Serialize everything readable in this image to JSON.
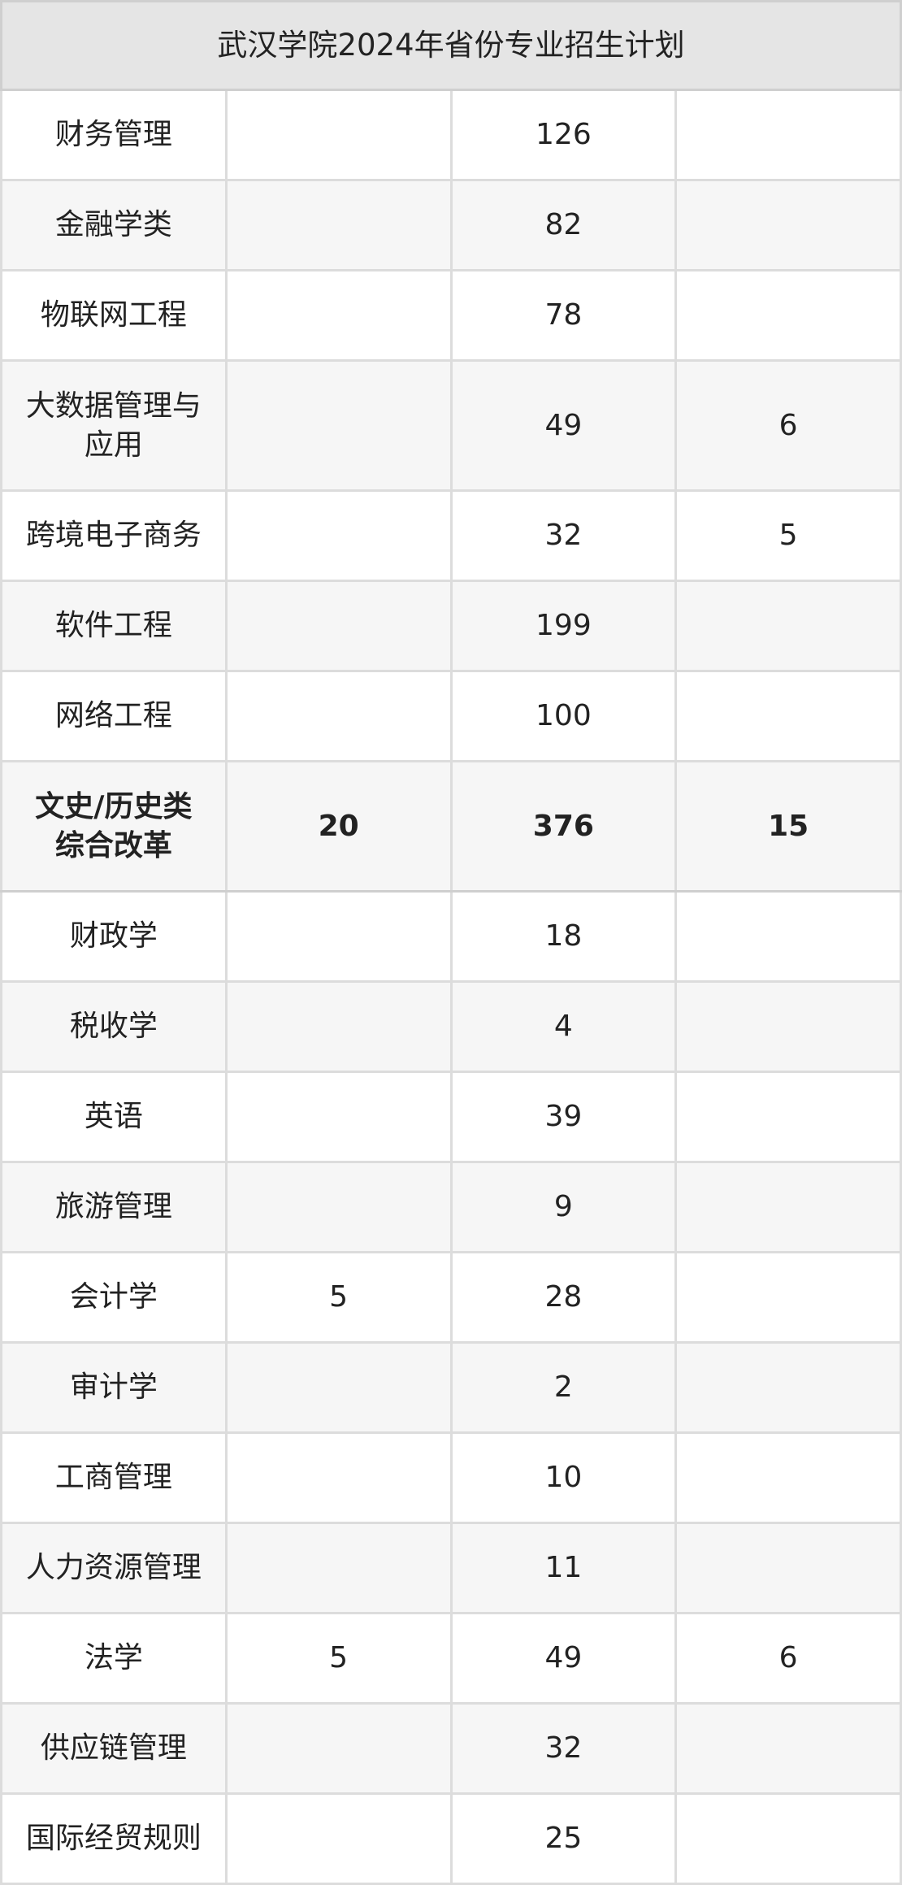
{
  "title": "武汉学院2024年省份专业招生计划",
  "rows": [
    {
      "name": "财务管理",
      "c1": "",
      "c2": "126",
      "c3": ""
    },
    {
      "name": "金融学类",
      "c1": "",
      "c2": "82",
      "c3": ""
    },
    {
      "name": "物联网工程",
      "c1": "",
      "c2": "78",
      "c3": ""
    },
    {
      "name": "大数据管理与\n应用",
      "c1": "",
      "c2": "49",
      "c3": "6"
    },
    {
      "name": "跨境电子商务",
      "c1": "",
      "c2": "32",
      "c3": "5"
    },
    {
      "name": "软件工程",
      "c1": "",
      "c2": "199",
      "c3": ""
    },
    {
      "name": "网络工程",
      "c1": "",
      "c2": "100",
      "c3": ""
    },
    {
      "name": "文史/历史类\n综合改革",
      "c1": "20",
      "c2": "376",
      "c3": "15",
      "bold": true
    },
    {
      "name": "财政学",
      "c1": "",
      "c2": "18",
      "c3": ""
    },
    {
      "name": "税收学",
      "c1": "",
      "c2": "4",
      "c3": ""
    },
    {
      "name": "英语",
      "c1": "",
      "c2": "39",
      "c3": ""
    },
    {
      "name": "旅游管理",
      "c1": "",
      "c2": "9",
      "c3": ""
    },
    {
      "name": "会计学",
      "c1": "5",
      "c2": "28",
      "c3": ""
    },
    {
      "name": "审计学",
      "c1": "",
      "c2": "2",
      "c3": ""
    },
    {
      "name": "工商管理",
      "c1": "",
      "c2": "10",
      "c3": ""
    },
    {
      "name": "人力资源管理",
      "c1": "",
      "c2": "11",
      "c3": ""
    },
    {
      "name": "法学",
      "c1": "5",
      "c2": "49",
      "c3": "6"
    },
    {
      "name": "供应链管理",
      "c1": "",
      "c2": "32",
      "c3": ""
    },
    {
      "name": "国际经贸规则",
      "c1": "",
      "c2": "25",
      "c3": ""
    }
  ]
}
